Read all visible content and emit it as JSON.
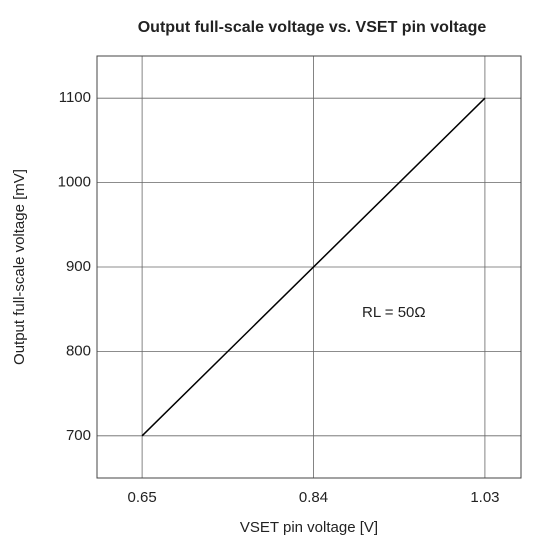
{
  "chart_data": {
    "type": "line",
    "title": "Output full-scale voltage vs. VSET pin voltage",
    "x_label": "VSET pin voltage [V]",
    "y_label": "Output full-scale voltage [mV]",
    "annotation": "RL = 50Ω",
    "x": [
      0.65,
      1.03
    ],
    "series": [
      {
        "name": "RL = 50Ω",
        "color": "#000000",
        "values": [
          700,
          1100
        ]
      }
    ],
    "xlim": [
      0.6,
      1.07
    ],
    "xticks": [
      0.65,
      0.84,
      1.03
    ],
    "ylim": [
      650,
      1150
    ],
    "yticks": [
      700,
      800,
      900,
      1000,
      1100
    ],
    "grid": true
  }
}
